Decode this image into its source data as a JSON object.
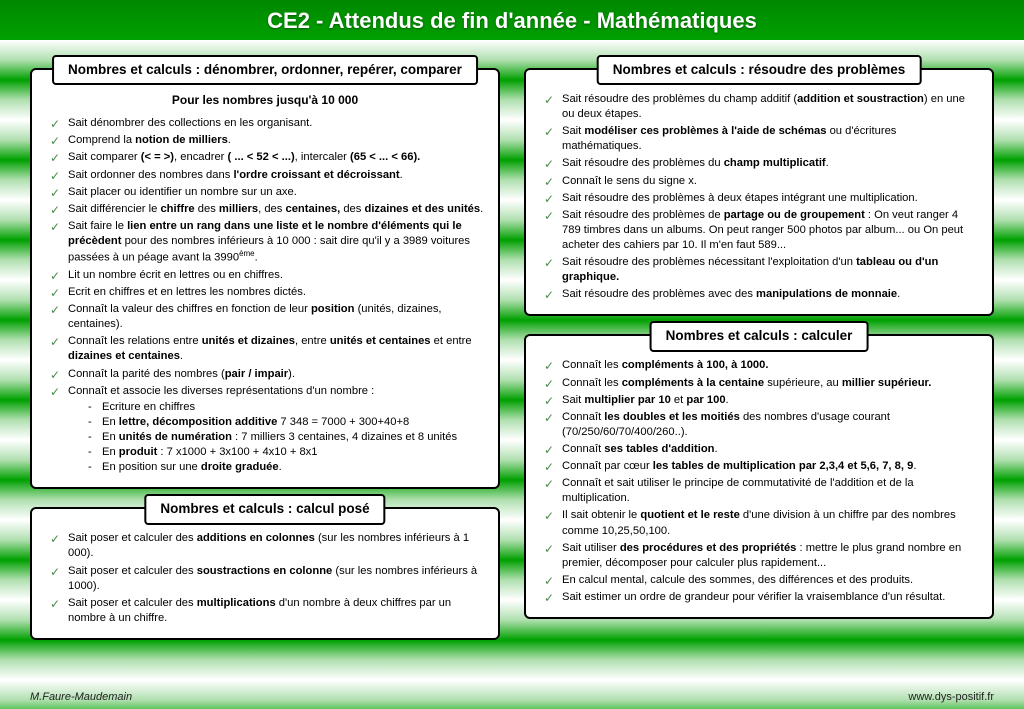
{
  "title": "CE2 - Attendus de fin d'année - Mathématiques",
  "footer": {
    "left": "M.Faure-Maudemain",
    "right": "www.dys-positif.fr"
  },
  "left": {
    "box1": {
      "title": "Nombres et calculs : dénombrer, ordonner, repérer, comparer",
      "subhead": "Pour les nombres jusqu'à 10 000",
      "items": [
        "Sait dénombrer des collections en les organisant.",
        "Comprend la <b>notion de milliers</b>.",
        "Sait comparer <b>(&lt; = &gt;)</b>, encadrer <b>( ... &lt; 52 &lt; ...)</b>, intercaler <b>(65 &lt; ... &lt; 66).</b>",
        "Sait ordonner des nombres dans <b>l'ordre croissant et décroissant</b>.",
        "Sait placer ou identifier un nombre sur un axe.",
        "Sait différencier le <b>chiffre</b> des <b>milliers</b>, des <b>centaines,</b> des <b>dizaines et des unités</b>.",
        "Sait faire le <b>lien entre un rang dans une liste et le nombre d'éléments qui le précèdent</b> pour des nombres inférieurs à 10 000 : sait dire qu'il y a 3989  voitures passées à un péage avant la 3990<sup>ème</sup>.",
        "Lit un nombre écrit en lettres ou en chiffres.",
        "Ecrit en chiffres et en lettres les nombres dictés.",
        "Connaît la valeur des chiffres en fonction de leur <b>position</b> (unités, dizaines, centaines).",
        "Connaît les relations entre <b>unités et dizaines</b>, entre <b>unités et centaines</b> et entre <b>dizaines et centaines</b>.",
        "Connaît la parité des nombres (<b>pair / impair</b>).",
        "Connaît et associe les diverses représentations d'un nombre :"
      ],
      "subitems": [
        "Ecriture en chiffres",
        "En <b>lettre, décomposition additive</b> 7 348 = 7000 + 300+40+8",
        "En <b>unités de numération</b> : 7 milliers 3 centaines, 4 dizaines et 8 unités",
        "En <b>produit</b> : 7 x1000 + 3x100 + 4x10 + 8x1",
        "En position sur une <b>droite graduée</b>."
      ]
    },
    "box2": {
      "title": "Nombres et calculs : calcul posé",
      "items": [
        "Sait poser et calculer des <b>additions en colonnes</b> (sur les nombres inférieurs à 1 000).",
        "Sait poser et calculer des <b>soustractions en colonne</b> (sur les nombres inférieurs à 1000).",
        "Sait poser et calculer des <b>multiplications</b> d'un nombre à deux chiffres par un nombre à un chiffre."
      ]
    }
  },
  "right": {
    "box1": {
      "title": "Nombres et calculs : résoudre des problèmes",
      "items": [
        "Sait résoudre des problèmes du champ additif (<b>addition et soustraction</b>) en une ou deux étapes.",
        "Sait <b>modéliser ces problèmes à l'aide de schémas</b> ou d'écritures mathématiques.",
        "Sait résoudre des problèmes du <b>champ multiplicatif</b>.",
        "Connaît le sens du signe x.",
        "Sait résoudre des problèmes à deux étapes intégrant une multiplication.",
        "Sait résoudre des problèmes de <b>partage ou de groupement</b> : On veut ranger 4 789 timbres dans un albums. On peut ranger 500 photos par album... ou On peut acheter des cahiers par 10. Il m'en faut 589...",
        "Sait résoudre des problèmes nécessitant l'exploitation d'un <b>tableau ou d'un graphique.</b>",
        "Sait résoudre des problèmes avec des <b>manipulations de monnaie</b>."
      ]
    },
    "box2": {
      "title": "Nombres et calculs : calculer",
      "items": [
        "Connaît les <b>compléments à 100, à 1000.</b>",
        "Connaît les <b>compléments à la centaine</b> supérieure, au <b>millier supérieur.</b>",
        "Sait <b>multiplier par 10</b> et <b>par 100</b>.",
        "Connaît <b>les doubles et les moitiés</b> des nombres d'usage courant (70/250/60/70/400/260..).",
        "Connaît <b>ses tables d'addition</b>.",
        "Connaît par cœur <b>les tables de multiplication par 2,3,4 et 5,6, 7, 8, 9</b>.",
        "Connaît et sait utiliser le principe de commutativité de l'addition et de la multiplication.",
        "Il sait obtenir le <b>quotient et le reste</b> d'une division à un chiffre par des nombres comme 10,25,50,100.",
        "Sait utiliser <b> des procédures et des propriétés</b> : mettre le plus grand nombre en premier, décomposer pour calculer plus rapidement...",
        "En calcul mental, calcule des sommes, des différences et des produits.",
        "Sait estimer un ordre de grandeur pour vérifier la vraisemblance d'un résultat."
      ]
    }
  }
}
